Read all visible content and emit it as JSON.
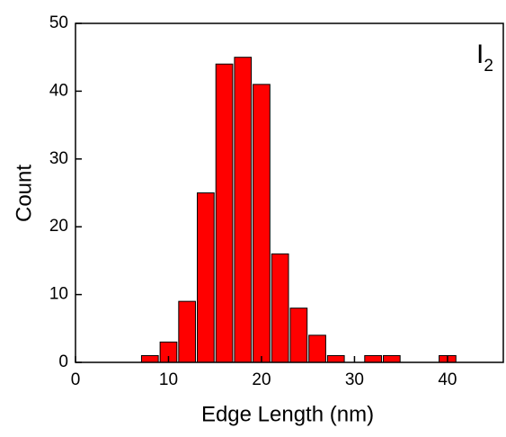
{
  "chart_data": {
    "type": "histogram",
    "xlabel": "Edge Length (nm)",
    "ylabel": "Count",
    "annotation": {
      "text": "I",
      "subscript": "2"
    },
    "bins": [
      7,
      9,
      11,
      13,
      15,
      17,
      19,
      21,
      23,
      25,
      27,
      29,
      31,
      33,
      35,
      37,
      39,
      41
    ],
    "values": [
      1,
      3,
      9,
      25,
      44,
      45,
      41,
      16,
      8,
      4,
      1,
      0,
      1,
      1,
      0,
      0,
      1
    ],
    "color": "#ff0000",
    "xlim": [
      0,
      46
    ],
    "xticks": [
      0,
      10,
      20,
      30,
      40
    ],
    "ylim": [
      0,
      50
    ],
    "yticks": [
      0,
      10,
      20,
      30,
      40,
      50
    ]
  }
}
